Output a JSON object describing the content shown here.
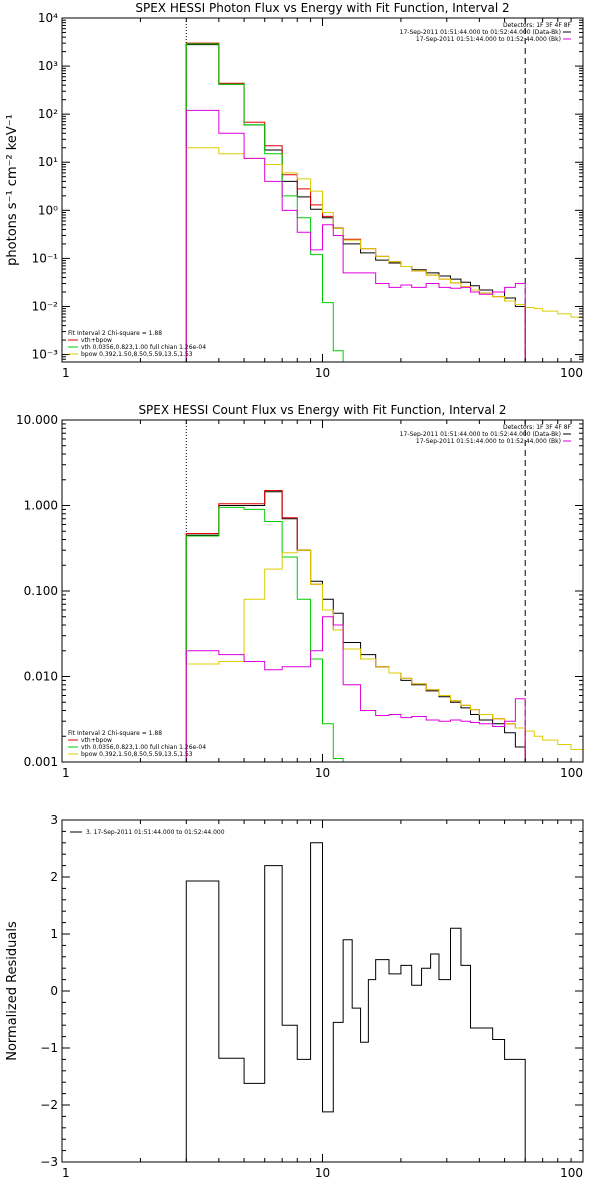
{
  "colors": {
    "background": "#ffffff",
    "axis": "#000000",
    "data": "#000000",
    "total_fit": "#dd0000",
    "vth": "#00cc00",
    "bpow": "#ddcc00",
    "background_series": "#dd00dd"
  },
  "chart_data": [
    {
      "id": "photon",
      "type": "line",
      "title": "SPEX HESSI Photon Flux vs Energy with Fit Function, Interval 2",
      "ylabel": "photons s⁻¹ cm⁻² keV⁻¹",
      "xlabel": "",
      "x_scale": "log",
      "y_scale": "log",
      "xlim": [
        1,
        100
      ],
      "ylim": [
        0.0007,
        10000
      ],
      "x_ticks": [
        1,
        10,
        100
      ],
      "x_tick_labels": [
        "1",
        "10",
        "100"
      ],
      "y_ticks": [
        0.001,
        0.01,
        0.1,
        1,
        10,
        100,
        1000,
        10000
      ],
      "y_tick_labels": [
        "10⁻³",
        "10⁻²",
        "10⁻¹",
        "10⁰",
        "10¹",
        "10²",
        "10³",
        "10⁴"
      ],
      "vlines": [
        {
          "x": 3.0,
          "style": "dotted",
          "color": "#000000"
        },
        {
          "x": 60.0,
          "style": "dashed",
          "color": "#000000"
        }
      ],
      "legend_top": {
        "position": "top-right",
        "header": "Detectors: 1F 3F 4F 8F",
        "entries": [
          {
            "text": "17-Sep-2011 01:51:44.000 to 01:52:44.000 (Data-Bk)",
            "color": "#000000"
          },
          {
            "text": "17-Sep-2011 01:51:44.000 to 01:52:44.000 (Bk)",
            "color": "#dd00dd"
          }
        ]
      },
      "legend_bottom": {
        "position": "bottom-left",
        "header": "Fit Interval 2   Chi-square = 1.88",
        "entries": [
          {
            "text": "vth+bpow",
            "color": "#dd0000"
          },
          {
            "text": "vth 0.0356,0.823,1.00  full chian 1.26e-04",
            "color": "#00cc00"
          },
          {
            "text": "bpow 0.392,1.50,8.50,5.59,13.5,1.53",
            "color": "#ddcc00"
          }
        ]
      },
      "series": [
        {
          "name": "17-Sep-2011 01:51:44.000 to 01:52:44.000 (Data-Bk)",
          "color": "#000000",
          "edges": [
            3.0,
            4.0,
            5.0,
            6.0,
            7.0,
            8.0,
            9.0,
            10.0,
            11.0,
            12.0,
            14.0,
            16.0,
            18.0,
            20.0,
            22.0,
            25.0,
            28.0,
            31.0,
            34.0,
            37.0,
            40.0,
            45.0,
            50.0,
            55.0,
            60.0
          ],
          "values": [
            2800,
            420,
            60,
            18,
            4.0,
            1.9,
            1.05,
            0.7,
            0.42,
            0.2,
            0.13,
            0.092,
            0.08,
            0.068,
            0.058,
            0.05,
            0.043,
            0.037,
            0.032,
            0.027,
            0.022,
            0.02,
            0.015,
            0.01
          ]
        },
        {
          "name": "vth+bpow",
          "color": "#dd0000",
          "edges": [
            3.0,
            4.0,
            5.0,
            6.0,
            7.0,
            8.0,
            9.0,
            10.0,
            11.0,
            12.0,
            14.0,
            16.0,
            18.0,
            20.0,
            22.0,
            25.0,
            28.0,
            31.0,
            34.0,
            37.0,
            40.0,
            45.0,
            50.0,
            55.0,
            60.0
          ],
          "values": [
            3000,
            440,
            68,
            22,
            5.5,
            2.8,
            1.3,
            0.75,
            0.43,
            0.25,
            0.16,
            0.11,
            0.085,
            0.068,
            0.055,
            0.045,
            0.037,
            0.031,
            0.026,
            0.022,
            0.019,
            0.016,
            0.013,
            0.011
          ]
        },
        {
          "name": "vth 0.0356,0.823,1.00  full chian 1.26e-04",
          "color": "#00cc00",
          "edges": [
            3.0,
            4.0,
            5.0,
            6.0,
            7.0,
            8.0,
            9.0,
            10.0,
            11.0,
            12.0
          ],
          "values": [
            2900,
            420,
            60,
            15,
            2.0,
            0.7,
            0.12,
            0.012,
            0.0012,
            0.0007
          ]
        },
        {
          "name": "bpow 0.392,1.50,8.50,5.59,13.5,1.53",
          "color": "#ddcc00",
          "edges": [
            3.0,
            4.0,
            5.0,
            6.0,
            7.0,
            8.0,
            9.0,
            10.0,
            11.0,
            12.0,
            14.0,
            16.0,
            18.0,
            20.0,
            22.0,
            25.0,
            28.0,
            31.0,
            34.0,
            37.0,
            40.0,
            45.0,
            50.0,
            55.0,
            60.0,
            65.0,
            70.0,
            80.0,
            90.0,
            100.0
          ],
          "values": [
            20,
            15,
            12,
            9,
            6,
            4.5,
            2.5,
            0.9,
            0.42,
            0.24,
            0.16,
            0.11,
            0.085,
            0.068,
            0.055,
            0.045,
            0.037,
            0.031,
            0.026,
            0.022,
            0.019,
            0.016,
            0.013,
            0.011,
            0.0095,
            0.009,
            0.008,
            0.007,
            0.006
          ]
        },
        {
          "name": "17-Sep-2011 01:51:44.000 to 01:52:44.000 (Bk)",
          "color": "#dd00dd",
          "edges": [
            3.0,
            4.0,
            5.0,
            6.0,
            7.0,
            8.0,
            9.0,
            10.0,
            11.0,
            12.0,
            14.0,
            16.0,
            18.0,
            20.0,
            22.0,
            25.0,
            28.0,
            31.0,
            34.0,
            37.0,
            40.0,
            45.0,
            50.0,
            55.0,
            60.0
          ],
          "values": [
            120,
            40,
            12,
            4.0,
            1.0,
            0.35,
            0.15,
            0.5,
            0.3,
            0.05,
            0.05,
            0.03,
            0.025,
            0.028,
            0.025,
            0.03,
            0.025,
            0.024,
            0.025,
            0.02,
            0.018,
            0.02,
            0.025,
            0.03
          ]
        }
      ]
    },
    {
      "id": "count",
      "type": "line",
      "title": "SPEX HESSI Count Flux vs Energy with Fit Function, Interval 2",
      "xlabel": "",
      "ylabel": "",
      "x_scale": "log",
      "y_scale": "log",
      "xlim": [
        1,
        100
      ],
      "ylim": [
        0.001,
        10
      ],
      "x_ticks": [
        1,
        10,
        100
      ],
      "x_tick_labels": [
        "1",
        "10",
        "100"
      ],
      "y_ticks": [
        0.001,
        0.01,
        0.1,
        1,
        10
      ],
      "y_tick_labels": [
        "0.001",
        "0.010",
        "0.100",
        "1.000",
        "10.000"
      ],
      "vlines": [
        {
          "x": 3.0,
          "style": "dotted",
          "color": "#000000"
        },
        {
          "x": 60.0,
          "style": "dashed",
          "color": "#000000"
        }
      ],
      "legend_top": {
        "position": "top-right",
        "header": "Detectors: 1F 3F 4F 8F",
        "entries": [
          {
            "text": "17-Sep-2011 01:51:44.000 to 01:52:44.000 (Data-Bk)",
            "color": "#000000"
          },
          {
            "text": "17-Sep-2011 01:51:44.000 to 01:52:44.000 (Bk)",
            "color": "#dd00dd"
          }
        ]
      },
      "legend_bottom": {
        "position": "bottom-left",
        "header": "Fit Interval 2   Chi-square = 1.88",
        "entries": [
          {
            "text": "vth+bpow",
            "color": "#dd0000"
          },
          {
            "text": "vth 0.0356,0.823,1.00  full chian 1.26e-04",
            "color": "#00cc00"
          },
          {
            "text": "bpow 0.392,1.50,8.50,5.59,13.5,1.53",
            "color": "#ddcc00"
          }
        ]
      },
      "series": [
        {
          "name": "17-Sep-2011 01:51:44.000 to 01:52:44.000 (Data-Bk)",
          "color": "#000000",
          "edges": [
            3.0,
            4.0,
            5.0,
            6.0,
            7.0,
            8.0,
            9.0,
            10.0,
            11.0,
            12.0,
            14.0,
            16.0,
            18.0,
            20.0,
            22.0,
            25.0,
            28.0,
            31.0,
            34.0,
            37.0,
            40.0,
            45.0,
            50.0,
            55.0,
            60.0
          ],
          "values": [
            0.45,
            1.0,
            1.0,
            1.45,
            0.7,
            0.3,
            0.13,
            0.08,
            0.055,
            0.025,
            0.018,
            0.013,
            0.011,
            0.009,
            0.008,
            0.0068,
            0.0058,
            0.005,
            0.0043,
            0.0036,
            0.0031,
            0.0028,
            0.0022,
            0.0015
          ]
        },
        {
          "name": "vth+bpow",
          "color": "#dd0000",
          "edges": [
            3.0,
            4.0,
            5.0,
            6.0,
            7.0,
            8.0,
            9.0,
            10.0,
            11.0,
            12.0,
            14.0,
            16.0,
            18.0,
            20.0,
            22.0,
            25.0,
            28.0,
            31.0,
            34.0,
            37.0,
            40.0,
            45.0,
            50.0,
            55.0,
            60.0
          ],
          "values": [
            0.47,
            1.05,
            1.05,
            1.5,
            0.72,
            0.3,
            0.12,
            0.06,
            0.035,
            0.021,
            0.016,
            0.013,
            0.011,
            0.0095,
            0.0082,
            0.007,
            0.006,
            0.0052,
            0.0046,
            0.0041,
            0.0036,
            0.0032,
            0.0028,
            0.0025
          ]
        },
        {
          "name": "vth 0.0356,0.823,1.00  full chian 1.26e-04",
          "color": "#00cc00",
          "edges": [
            3.0,
            4.0,
            5.0,
            6.0,
            7.0,
            8.0,
            9.0,
            10.0,
            11.0,
            12.0
          ],
          "values": [
            0.44,
            0.95,
            0.9,
            0.65,
            0.25,
            0.08,
            0.016,
            0.0028,
            0.0011,
            0.0008
          ]
        },
        {
          "name": "bpow 0.392,1.50,8.50,5.59,13.5,1.53",
          "color": "#ddcc00",
          "edges": [
            3.0,
            4.0,
            5.0,
            6.0,
            7.0,
            8.0,
            9.0,
            10.0,
            11.0,
            12.0,
            14.0,
            16.0,
            18.0,
            20.0,
            22.0,
            25.0,
            28.0,
            31.0,
            34.0,
            37.0,
            40.0,
            45.0,
            50.0,
            55.0,
            60.0,
            65.0,
            70.0,
            80.0,
            90.0,
            100.0
          ],
          "values": [
            0.014,
            0.015,
            0.08,
            0.18,
            0.28,
            0.3,
            0.12,
            0.06,
            0.035,
            0.021,
            0.016,
            0.013,
            0.011,
            0.0095,
            0.0082,
            0.007,
            0.006,
            0.0052,
            0.0046,
            0.0041,
            0.0036,
            0.0032,
            0.0028,
            0.0025,
            0.0023,
            0.002,
            0.0018,
            0.0016,
            0.0014
          ]
        },
        {
          "name": "17-Sep-2011 01:51:44.000 to 01:52:44.000 (Bk)",
          "color": "#dd00dd",
          "edges": [
            3.0,
            4.0,
            5.0,
            6.0,
            7.0,
            8.0,
            9.0,
            10.0,
            11.0,
            12.0,
            14.0,
            16.0,
            18.0,
            20.0,
            22.0,
            25.0,
            28.0,
            31.0,
            34.0,
            37.0,
            40.0,
            45.0,
            50.0,
            55.0,
            60.0
          ],
          "values": [
            0.02,
            0.018,
            0.015,
            0.012,
            0.013,
            0.013,
            0.02,
            0.05,
            0.04,
            0.008,
            0.004,
            0.0035,
            0.0036,
            0.0033,
            0.0034,
            0.0031,
            0.003,
            0.0031,
            0.003,
            0.0029,
            0.0028,
            0.0026,
            0.003,
            0.0055
          ]
        }
      ]
    },
    {
      "id": "residuals",
      "type": "line",
      "title": "",
      "xlabel": "",
      "ylabel": "Normalized Residuals",
      "x_scale": "log",
      "y_scale": "linear",
      "xlim": [
        1,
        100
      ],
      "ylim": [
        -3,
        3
      ],
      "x_ticks": [
        1,
        10,
        100
      ],
      "x_tick_labels": [
        "1",
        "10",
        "100"
      ],
      "y_ticks": [
        -3,
        -2,
        -1,
        0,
        1,
        2,
        3
      ],
      "y_tick_labels": [
        "−3",
        "−2",
        "−1",
        "0",
        "1",
        "2",
        "3"
      ],
      "legend_top": {
        "position": "top-left",
        "header": "",
        "entries": [
          {
            "text": "3. 17-Sep-2011 01:51:44.000 to 01:52:44.000",
            "color": "#000000"
          }
        ]
      },
      "series": [
        {
          "name": "3. 17-Sep-2011 01:51:44.000 to 01:52:44.000",
          "color": "#000000",
          "edges": [
            3.0,
            4.0,
            5.0,
            6.0,
            7.0,
            8.0,
            9.0,
            10.0,
            11.0,
            12.0,
            13.0,
            14.0,
            15.0,
            16.0,
            18.0,
            20.0,
            22.0,
            24.0,
            26.0,
            28.0,
            31.0,
            34.0,
            37.0,
            40.0,
            45.0,
            50.0,
            55.0,
            60.0
          ],
          "values": [
            1.93,
            -1.18,
            -1.62,
            2.2,
            -0.6,
            -1.2,
            2.6,
            -2.12,
            -0.55,
            0.9,
            -0.3,
            -0.9,
            0.2,
            0.55,
            0.3,
            0.45,
            0.1,
            0.4,
            0.65,
            0.2,
            1.1,
            0.45,
            -0.65,
            -0.65,
            -0.85,
            -1.2,
            -1.2
          ]
        }
      ]
    }
  ]
}
